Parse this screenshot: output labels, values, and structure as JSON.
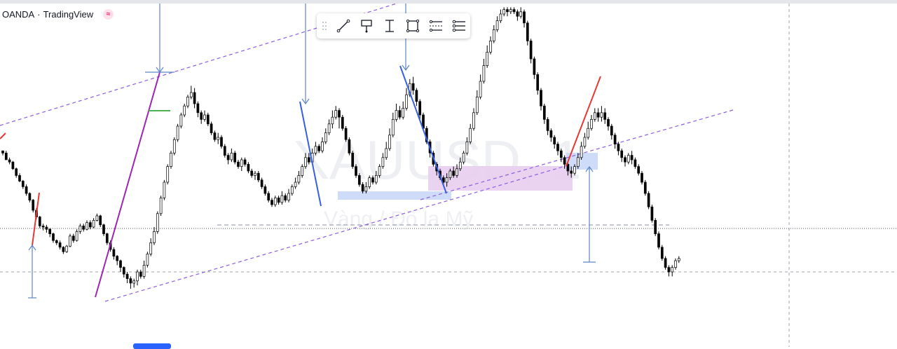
{
  "header": {
    "broker": "OANDA",
    "separator": "·",
    "platform": "TradingView",
    "badge_icon": "wave-badge-icon",
    "badge_glyph": "≈"
  },
  "toolbar": {
    "tools": [
      {
        "name": "trend-line-tool",
        "icon": "trend-line-icon"
      },
      {
        "name": "callout-tool",
        "icon": "callout-icon"
      },
      {
        "name": "price-range-tool",
        "icon": "price-range-icon"
      },
      {
        "name": "rectangle-tool",
        "icon": "rectangle-icon"
      },
      {
        "name": "date-price-range-tool",
        "icon": "date-price-range-icon"
      },
      {
        "name": "settings-list-tool",
        "icon": "settings-list-icon"
      }
    ]
  },
  "colors": {
    "up_candle": "#ffffff",
    "down_candle": "#000000",
    "candle_outline": "#000000",
    "channel": "#8e5ee0",
    "purple_leg": "#9c27b0",
    "blue_leg": "#3660e0",
    "red_leg": "#e53935",
    "arrow": "#5b86c8",
    "blue_zone": "#c9d8fa",
    "purple_zone": "#e8cdef",
    "green_mark": "#4caf50",
    "watermark": "#eeeff2"
  },
  "chart_data": {
    "type": "candlestick",
    "watermark": "XAUUSD, 1",
    "watermark_sub": "Vàng / Đô la Mỹ",
    "grid": false,
    "candles": [
      [
        68,
        66,
        64,
        68
      ],
      [
        66,
        60,
        60,
        68
      ],
      [
        60,
        58,
        56,
        62
      ],
      [
        58,
        52,
        51,
        59
      ],
      [
        52,
        46,
        44,
        53
      ],
      [
        46,
        41,
        40,
        48
      ],
      [
        41,
        36,
        34,
        42
      ],
      [
        36,
        30,
        28,
        38
      ],
      [
        30,
        24,
        22,
        31
      ],
      [
        24,
        15,
        13,
        25
      ],
      [
        15,
        9,
        7,
        17
      ],
      [
        9,
        1,
        -1,
        10
      ],
      [
        1,
        0,
        -3,
        3
      ],
      [
        0,
        -2,
        -5,
        2
      ],
      [
        -2,
        -6,
        -9,
        -1
      ],
      [
        -6,
        -12,
        -14,
        -5
      ],
      [
        -12,
        -14,
        -16,
        -11
      ],
      [
        -14,
        -18,
        -20,
        -12
      ],
      [
        -18,
        -22,
        -24,
        -17
      ],
      [
        -22,
        -17,
        -23,
        -16
      ],
      [
        -17,
        -8,
        -18,
        -6
      ],
      [
        -8,
        -12,
        -14,
        -6
      ],
      [
        -12,
        -4,
        -13,
        -2
      ],
      [
        -4,
        1,
        -6,
        3
      ],
      [
        1,
        -2,
        -4,
        3
      ],
      [
        -2,
        4,
        -3,
        6
      ],
      [
        4,
        0,
        -2,
        6
      ],
      [
        0,
        6,
        -1,
        8
      ],
      [
        6,
        10,
        5,
        12
      ],
      [
        10,
        2,
        0,
        11
      ],
      [
        2,
        -6,
        -8,
        3
      ],
      [
        -6,
        -14,
        -16,
        -5
      ],
      [
        -14,
        -20,
        -22,
        -12
      ],
      [
        -20,
        -26,
        -29,
        -18
      ],
      [
        -26,
        -30,
        -34,
        -25
      ],
      [
        -30,
        -36,
        -40,
        -29
      ],
      [
        -36,
        -42,
        -45,
        -35
      ],
      [
        -42,
        -46,
        -50,
        -40
      ],
      [
        -46,
        -50,
        -55,
        -44
      ],
      [
        -50,
        -48,
        -54,
        -46
      ],
      [
        -48,
        -40,
        -52,
        -38
      ],
      [
        -40,
        -44,
        -46,
        -38
      ],
      [
        -44,
        -34,
        -46,
        -30
      ],
      [
        -34,
        -24,
        -36,
        -22
      ],
      [
        -24,
        -14,
        -26,
        -10
      ],
      [
        -14,
        -4,
        -16,
        0
      ],
      [
        -4,
        12,
        -6,
        14
      ],
      [
        12,
        26,
        10,
        28
      ],
      [
        26,
        40,
        24,
        42
      ],
      [
        40,
        54,
        38,
        56
      ],
      [
        54,
        66,
        52,
        68
      ],
      [
        66,
        78,
        64,
        80
      ],
      [
        78,
        90,
        76,
        92
      ],
      [
        90,
        100,
        88,
        102
      ],
      [
        100,
        108,
        98,
        110
      ],
      [
        108,
        116,
        106,
        118
      ],
      [
        116,
        120,
        114,
        126
      ],
      [
        120,
        110,
        106,
        124
      ],
      [
        110,
        102,
        98,
        112
      ],
      [
        102,
        96,
        92,
        104
      ],
      [
        96,
        100,
        94,
        104
      ],
      [
        100,
        92,
        90,
        102
      ],
      [
        92,
        84,
        82,
        94
      ],
      [
        84,
        78,
        76,
        86
      ],
      [
        78,
        80,
        74,
        84
      ],
      [
        80,
        72,
        70,
        82
      ],
      [
        72,
        64,
        62,
        74
      ],
      [
        64,
        60,
        56,
        66
      ],
      [
        60,
        66,
        58,
        70
      ],
      [
        66,
        58,
        56,
        68
      ],
      [
        58,
        54,
        52,
        60
      ],
      [
        54,
        60,
        50,
        62
      ],
      [
        60,
        56,
        54,
        62
      ],
      [
        56,
        50,
        48,
        58
      ],
      [
        50,
        46,
        44,
        52
      ],
      [
        46,
        48,
        42,
        50
      ],
      [
        48,
        42,
        40,
        50
      ],
      [
        42,
        36,
        34,
        44
      ],
      [
        36,
        30,
        28,
        38
      ],
      [
        30,
        24,
        22,
        32
      ],
      [
        24,
        20,
        18,
        26
      ],
      [
        20,
        26,
        18,
        28
      ],
      [
        26,
        22,
        20,
        28
      ],
      [
        22,
        28,
        20,
        32
      ],
      [
        28,
        24,
        22,
        30
      ],
      [
        24,
        30,
        22,
        34
      ],
      [
        30,
        36,
        28,
        38
      ],
      [
        36,
        40,
        34,
        44
      ],
      [
        40,
        46,
        38,
        50
      ],
      [
        46,
        54,
        44,
        56
      ],
      [
        54,
        62,
        52,
        66
      ],
      [
        62,
        58,
        56,
        66
      ],
      [
        58,
        66,
        56,
        70
      ],
      [
        66,
        72,
        64,
        76
      ],
      [
        72,
        68,
        66,
        74
      ],
      [
        68,
        76,
        66,
        80
      ],
      [
        76,
        84,
        74,
        88
      ],
      [
        84,
        92,
        82,
        96
      ],
      [
        92,
        98,
        88,
        104
      ],
      [
        98,
        104,
        96,
        108
      ],
      [
        104,
        98,
        88,
        106
      ],
      [
        98,
        88,
        86,
        100
      ],
      [
        88,
        78,
        76,
        90
      ],
      [
        78,
        66,
        64,
        80
      ],
      [
        66,
        54,
        52,
        68
      ],
      [
        54,
        46,
        44,
        56
      ],
      [
        46,
        38,
        36,
        48
      ],
      [
        38,
        32,
        30,
        40
      ],
      [
        32,
        36,
        30,
        40
      ],
      [
        36,
        44,
        34,
        46
      ],
      [
        44,
        40,
        38,
        46
      ],
      [
        40,
        46,
        38,
        50
      ],
      [
        46,
        54,
        44,
        56
      ],
      [
        54,
        62,
        52,
        66
      ],
      [
        62,
        70,
        60,
        76
      ],
      [
        70,
        82,
        68,
        88
      ],
      [
        82,
        96,
        80,
        102
      ],
      [
        96,
        104,
        94,
        110
      ],
      [
        104,
        98,
        96,
        108
      ],
      [
        98,
        106,
        96,
        112
      ],
      [
        106,
        118,
        104,
        124
      ],
      [
        118,
        128,
        116,
        132
      ],
      [
        128,
        122,
        118,
        134
      ],
      [
        122,
        112,
        108,
        124
      ],
      [
        112,
        100,
        96,
        114
      ],
      [
        100,
        88,
        86,
        102
      ],
      [
        88,
        76,
        74,
        90
      ],
      [
        76,
        66,
        62,
        78
      ],
      [
        66,
        56,
        54,
        68
      ],
      [
        56,
        50,
        46,
        58
      ],
      [
        50,
        44,
        42,
        52
      ],
      [
        44,
        40,
        38,
        46
      ],
      [
        40,
        44,
        36,
        48
      ],
      [
        44,
        50,
        42,
        52
      ],
      [
        50,
        46,
        44,
        54
      ],
      [
        46,
        52,
        44,
        56
      ],
      [
        52,
        58,
        50,
        62
      ],
      [
        58,
        66,
        56,
        68
      ],
      [
        66,
        76,
        64,
        80
      ],
      [
        76,
        88,
        74,
        92
      ],
      [
        88,
        102,
        86,
        106
      ],
      [
        102,
        116,
        100,
        122
      ],
      [
        116,
        130,
        114,
        136
      ],
      [
        130,
        144,
        128,
        150
      ],
      [
        144,
        156,
        142,
        162
      ],
      [
        156,
        166,
        154,
        170
      ],
      [
        166,
        176,
        164,
        180
      ],
      [
        176,
        184,
        174,
        188
      ],
      [
        184,
        190,
        182,
        194
      ],
      [
        190,
        194,
        188,
        196
      ],
      [
        194,
        192,
        188,
        196
      ],
      [
        192,
        194,
        190,
        196
      ],
      [
        194,
        192,
        190,
        196
      ],
      [
        192,
        188,
        184,
        194
      ],
      [
        188,
        192,
        186,
        196
      ],
      [
        192,
        182,
        178,
        194
      ],
      [
        182,
        166,
        162,
        184
      ],
      [
        166,
        150,
        146,
        168
      ],
      [
        150,
        136,
        132,
        152
      ],
      [
        136,
        122,
        118,
        138
      ],
      [
        122,
        108,
        104,
        124
      ],
      [
        108,
        96,
        92,
        110
      ],
      [
        96,
        86,
        82,
        98
      ],
      [
        86,
        80,
        76,
        88
      ],
      [
        80,
        74,
        70,
        82
      ],
      [
        74,
        68,
        64,
        76
      ],
      [
        68,
        62,
        58,
        70
      ],
      [
        62,
        56,
        52,
        64
      ],
      [
        56,
        50,
        46,
        58
      ],
      [
        50,
        48,
        44,
        54
      ],
      [
        48,
        54,
        46,
        56
      ],
      [
        54,
        62,
        52,
        66
      ],
      [
        62,
        72,
        60,
        76
      ],
      [
        72,
        80,
        70,
        84
      ],
      [
        80,
        88,
        78,
        94
      ],
      [
        88,
        96,
        86,
        100
      ],
      [
        96,
        102,
        94,
        106
      ],
      [
        102,
        98,
        94,
        106
      ],
      [
        98,
        102,
        94,
        108
      ],
      [
        102,
        96,
        92,
        106
      ],
      [
        96,
        90,
        86,
        98
      ],
      [
        90,
        82,
        78,
        92
      ],
      [
        82,
        74,
        70,
        84
      ],
      [
        74,
        68,
        64,
        76
      ],
      [
        68,
        62,
        58,
        70
      ],
      [
        62,
        58,
        54,
        64
      ],
      [
        58,
        64,
        56,
        66
      ],
      [
        64,
        60,
        56,
        68
      ],
      [
        60,
        54,
        52,
        62
      ],
      [
        54,
        48,
        46,
        56
      ],
      [
        48,
        40,
        38,
        50
      ],
      [
        40,
        30,
        28,
        42
      ],
      [
        30,
        18,
        16,
        32
      ],
      [
        18,
        6,
        4,
        20
      ],
      [
        6,
        -6,
        -8,
        8
      ],
      [
        -6,
        -18,
        -20,
        -4
      ],
      [
        -18,
        -28,
        -30,
        -16
      ],
      [
        -28,
        -36,
        -38,
        -26
      ],
      [
        -36,
        -40,
        -44,
        -34
      ],
      [
        -40,
        -36,
        -44,
        -34
      ],
      [
        -36,
        -30,
        -38,
        -28
      ],
      [
        -30,
        -28,
        -32,
        -26
      ]
    ],
    "levels": {
      "dotted": -1,
      "dashed": -27,
      "short_dashed": 2
    }
  }
}
